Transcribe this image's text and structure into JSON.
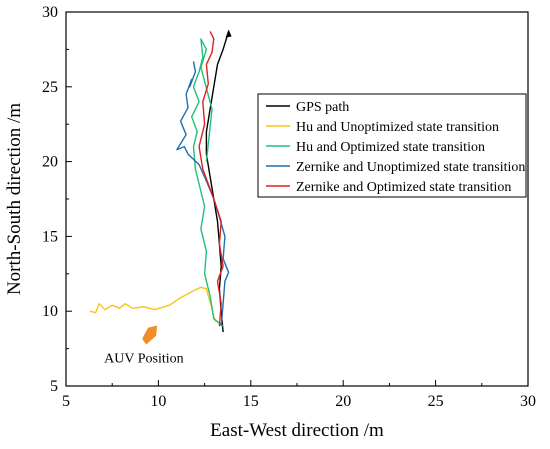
{
  "chart_data": {
    "type": "line",
    "xlabel": "East-West direction /m",
    "ylabel": "North-South direction /m",
    "xlim": [
      5,
      30
    ],
    "ylim": [
      5,
      30
    ],
    "xticks": [
      "5",
      "10",
      "15",
      "20",
      "25",
      "30"
    ],
    "yticks": [
      "5",
      "10",
      "15",
      "20",
      "25",
      "30"
    ],
    "grid": false,
    "legend_position": "upper-right",
    "annotation": {
      "text": "AUV Position",
      "x": 9.5,
      "y": 8.3,
      "color": "#f28c28"
    },
    "series": [
      {
        "name": "GPS path",
        "color": "#000000",
        "x": [
          13.5,
          13.4,
          13.3,
          13.4,
          13.3,
          13.2,
          13.0,
          12.8,
          12.6,
          12.6,
          12.8,
          13.0,
          13.2,
          13.5,
          13.8
        ],
        "y": [
          8.6,
          10.0,
          11.5,
          13.0,
          14.5,
          16.0,
          17.5,
          19.0,
          20.5,
          22.0,
          23.5,
          25.0,
          26.5,
          27.5,
          28.7
        ]
      },
      {
        "name": "Hu and Unoptimized state transition",
        "color": "#f5c518",
        "x": [
          6.3,
          6.6,
          6.8,
          7.1,
          7.5,
          7.9,
          8.2,
          8.6,
          9.2,
          9.8,
          10.6,
          11.2,
          11.8,
          12.3,
          12.6,
          12.7,
          12.9,
          13.0,
          13.1
        ],
        "y": [
          10.0,
          9.9,
          10.5,
          10.1,
          10.4,
          10.2,
          10.5,
          10.2,
          10.3,
          10.1,
          10.4,
          10.9,
          11.3,
          11.6,
          11.5,
          11.0,
          10.2,
          9.6,
          9.3
        ]
      },
      {
        "name": "Hu and Optimized state transition",
        "color": "#20c07a",
        "x": [
          13.5,
          13.0,
          12.8,
          12.5,
          12.6,
          12.3,
          12.5,
          12.2,
          12.0,
          11.9,
          12.1,
          11.8,
          12.2,
          11.9,
          12.2,
          12.4,
          12.3,
          12.6,
          12.3,
          12.9,
          12.6
        ],
        "y": [
          9.0,
          9.5,
          11.0,
          12.5,
          14.0,
          15.5,
          17.0,
          18.5,
          19.5,
          21.0,
          22.0,
          23.0,
          24.0,
          25.0,
          26.0,
          27.0,
          28.2,
          27.5,
          26.3,
          23.5,
          20.0
        ]
      },
      {
        "name": "Zernike and Unoptimized state transition",
        "color": "#1f6fb0",
        "x": [
          13.4,
          13.5,
          13.6,
          13.8,
          13.5,
          13.6,
          13.3,
          13.0,
          12.6,
          12.2,
          11.6,
          11.4,
          11.0,
          11.5,
          11.2,
          11.6,
          11.5,
          11.8,
          11.7,
          12.0,
          11.9
        ],
        "y": [
          9.0,
          10.5,
          12.0,
          12.6,
          13.5,
          15.0,
          16.3,
          17.5,
          18.7,
          19.8,
          20.5,
          21.0,
          20.8,
          21.8,
          22.7,
          23.6,
          24.5,
          25.5,
          25.0,
          26.0,
          26.7
        ]
      },
      {
        "name": "Zernike and Optimized state transition",
        "color": "#e02020",
        "x": [
          13.3,
          13.4,
          13.2,
          13.5,
          13.3,
          13.4,
          13.0,
          12.7,
          12.4,
          12.2,
          12.5,
          12.4,
          12.7,
          12.6,
          12.9,
          13.0,
          12.8
        ],
        "y": [
          9.0,
          10.5,
          12.0,
          13.0,
          14.5,
          16.0,
          17.5,
          18.5,
          19.5,
          21.0,
          22.5,
          24.0,
          25.2,
          26.5,
          27.3,
          28.2,
          28.7
        ]
      }
    ]
  }
}
